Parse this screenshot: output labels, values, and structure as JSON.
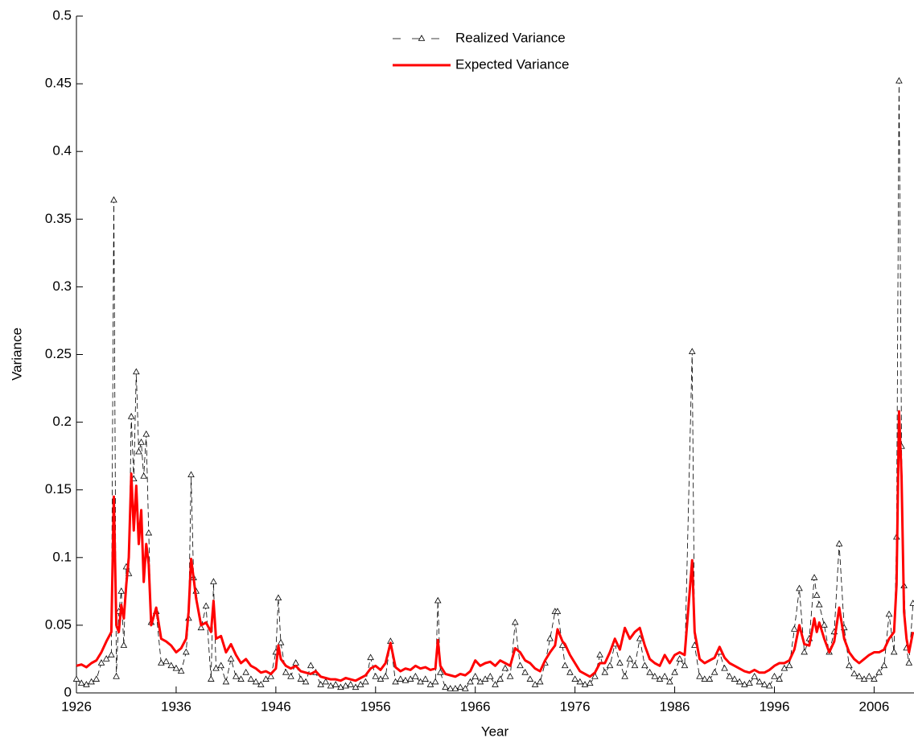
{
  "chart_data": {
    "type": "line",
    "xlabel": "Year",
    "ylabel": "Variance",
    "x": [
      1926.0,
      1926.5,
      1927.0,
      1927.5,
      1928.0,
      1928.5,
      1929.0,
      1929.5,
      1929.75,
      1930.0,
      1930.25,
      1930.5,
      1930.75,
      1931.0,
      1931.25,
      1931.5,
      1931.75,
      1932.0,
      1932.25,
      1932.5,
      1932.75,
      1933.0,
      1933.25,
      1933.5,
      1934.0,
      1934.5,
      1935.0,
      1935.5,
      1936.0,
      1936.5,
      1937.0,
      1937.25,
      1937.5,
      1937.75,
      1938.0,
      1938.5,
      1939.0,
      1939.5,
      1939.75,
      1940.0,
      1940.5,
      1941.0,
      1941.5,
      1942.0,
      1942.5,
      1943.0,
      1943.5,
      1944.0,
      1944.5,
      1945.0,
      1945.5,
      1946.0,
      1946.25,
      1946.5,
      1947.0,
      1947.5,
      1948.0,
      1948.5,
      1949.0,
      1949.5,
      1950.0,
      1950.5,
      1951.0,
      1951.5,
      1952.0,
      1952.5,
      1953.0,
      1953.5,
      1954.0,
      1954.5,
      1955.0,
      1955.5,
      1956.0,
      1956.5,
      1957.0,
      1957.5,
      1958.0,
      1958.5,
      1959.0,
      1959.5,
      1960.0,
      1960.5,
      1961.0,
      1961.5,
      1962.0,
      1962.25,
      1962.5,
      1963.0,
      1963.5,
      1964.0,
      1964.5,
      1965.0,
      1965.5,
      1966.0,
      1966.5,
      1967.0,
      1967.5,
      1968.0,
      1968.5,
      1969.0,
      1969.5,
      1970.0,
      1970.5,
      1971.0,
      1971.5,
      1972.0,
      1972.5,
      1973.0,
      1973.5,
      1974.0,
      1974.25,
      1974.75,
      1975.0,
      1975.5,
      1976.0,
      1976.5,
      1977.0,
      1977.5,
      1978.0,
      1978.5,
      1979.0,
      1979.5,
      1980.0,
      1980.5,
      1981.0,
      1981.5,
      1982.0,
      1982.5,
      1983.0,
      1983.5,
      1984.0,
      1984.5,
      1985.0,
      1985.5,
      1986.0,
      1986.5,
      1987.0,
      1987.75,
      1988.0,
      1988.5,
      1989.0,
      1989.5,
      1990.0,
      1990.5,
      1991.0,
      1991.5,
      1992.0,
      1992.5,
      1993.0,
      1993.5,
      1994.0,
      1994.5,
      1995.0,
      1995.5,
      1996.0,
      1996.5,
      1997.0,
      1997.5,
      1998.0,
      1998.5,
      1999.0,
      1999.5,
      2000.0,
      2000.25,
      2000.5,
      2001.0,
      2001.5,
      2002.0,
      2002.5,
      2003.0,
      2003.5,
      2004.0,
      2004.5,
      2005.0,
      2005.5,
      2006.0,
      2006.5,
      2007.0,
      2007.5,
      2008.0,
      2008.25,
      2008.5,
      2008.75,
      2009.0,
      2009.25,
      2009.5,
      2009.9
    ],
    "series": [
      {
        "name": "Realized Variance",
        "color": "#000000",
        "style": "dashed",
        "marker": "triangle",
        "values": [
          0.01,
          0.007,
          0.006,
          0.008,
          0.01,
          0.022,
          0.025,
          0.028,
          0.364,
          0.012,
          0.06,
          0.075,
          0.035,
          0.093,
          0.088,
          0.204,
          0.158,
          0.237,
          0.178,
          0.185,
          0.16,
          0.191,
          0.118,
          0.052,
          0.06,
          0.022,
          0.023,
          0.02,
          0.018,
          0.016,
          0.03,
          0.055,
          0.161,
          0.085,
          0.075,
          0.048,
          0.064,
          0.01,
          0.082,
          0.018,
          0.02,
          0.008,
          0.025,
          0.012,
          0.01,
          0.015,
          0.01,
          0.008,
          0.006,
          0.01,
          0.012,
          0.03,
          0.07,
          0.037,
          0.015,
          0.012,
          0.022,
          0.01,
          0.008,
          0.02,
          0.015,
          0.006,
          0.008,
          0.005,
          0.006,
          0.004,
          0.005,
          0.006,
          0.004,
          0.006,
          0.008,
          0.026,
          0.012,
          0.01,
          0.012,
          0.038,
          0.008,
          0.01,
          0.009,
          0.01,
          0.012,
          0.008,
          0.01,
          0.006,
          0.008,
          0.068,
          0.015,
          0.004,
          0.003,
          0.003,
          0.004,
          0.003,
          0.008,
          0.012,
          0.008,
          0.01,
          0.012,
          0.006,
          0.01,
          0.018,
          0.012,
          0.052,
          0.02,
          0.015,
          0.01,
          0.006,
          0.008,
          0.022,
          0.04,
          0.06,
          0.06,
          0.035,
          0.02,
          0.015,
          0.01,
          0.008,
          0.006,
          0.007,
          0.012,
          0.028,
          0.015,
          0.02,
          0.036,
          0.022,
          0.012,
          0.025,
          0.02,
          0.04,
          0.02,
          0.015,
          0.012,
          0.01,
          0.012,
          0.008,
          0.015,
          0.025,
          0.02,
          0.252,
          0.035,
          0.012,
          0.01,
          0.01,
          0.015,
          0.03,
          0.018,
          0.012,
          0.01,
          0.008,
          0.006,
          0.007,
          0.012,
          0.008,
          0.006,
          0.005,
          0.012,
          0.01,
          0.018,
          0.02,
          0.047,
          0.077,
          0.03,
          0.04,
          0.085,
          0.072,
          0.065,
          0.05,
          0.03,
          0.045,
          0.11,
          0.048,
          0.02,
          0.014,
          0.012,
          0.01,
          0.012,
          0.01,
          0.015,
          0.02,
          0.058,
          0.03,
          0.115,
          0.452,
          0.182,
          0.079,
          0.033,
          0.022,
          0.066
        ]
      },
      {
        "name": "Expected Variance",
        "color": "#ff0000",
        "style": "solid",
        "marker": "none",
        "values": [
          0.02,
          0.021,
          0.019,
          0.022,
          0.024,
          0.03,
          0.038,
          0.045,
          0.145,
          0.05,
          0.045,
          0.065,
          0.055,
          0.08,
          0.1,
          0.162,
          0.12,
          0.153,
          0.11,
          0.135,
          0.082,
          0.11,
          0.095,
          0.05,
          0.063,
          0.04,
          0.038,
          0.035,
          0.03,
          0.033,
          0.04,
          0.06,
          0.099,
          0.085,
          0.07,
          0.05,
          0.052,
          0.045,
          0.068,
          0.04,
          0.042,
          0.03,
          0.036,
          0.028,
          0.022,
          0.025,
          0.02,
          0.018,
          0.015,
          0.016,
          0.014,
          0.018,
          0.035,
          0.025,
          0.02,
          0.018,
          0.02,
          0.016,
          0.015,
          0.014,
          0.016,
          0.012,
          0.011,
          0.01,
          0.01,
          0.009,
          0.011,
          0.01,
          0.009,
          0.011,
          0.013,
          0.018,
          0.02,
          0.017,
          0.022,
          0.037,
          0.019,
          0.016,
          0.018,
          0.017,
          0.02,
          0.018,
          0.019,
          0.017,
          0.018,
          0.039,
          0.02,
          0.014,
          0.013,
          0.012,
          0.014,
          0.013,
          0.016,
          0.024,
          0.02,
          0.022,
          0.023,
          0.02,
          0.024,
          0.022,
          0.02,
          0.033,
          0.03,
          0.024,
          0.022,
          0.018,
          0.016,
          0.024,
          0.03,
          0.035,
          0.047,
          0.038,
          0.036,
          0.028,
          0.022,
          0.016,
          0.014,
          0.012,
          0.015,
          0.022,
          0.022,
          0.03,
          0.04,
          0.032,
          0.048,
          0.04,
          0.045,
          0.048,
          0.035,
          0.025,
          0.022,
          0.02,
          0.028,
          0.022,
          0.028,
          0.03,
          0.028,
          0.098,
          0.045,
          0.025,
          0.022,
          0.024,
          0.026,
          0.034,
          0.026,
          0.022,
          0.02,
          0.018,
          0.016,
          0.015,
          0.017,
          0.015,
          0.015,
          0.017,
          0.02,
          0.022,
          0.022,
          0.024,
          0.032,
          0.05,
          0.036,
          0.035,
          0.055,
          0.045,
          0.052,
          0.04,
          0.03,
          0.038,
          0.063,
          0.04,
          0.03,
          0.025,
          0.022,
          0.025,
          0.028,
          0.03,
          0.03,
          0.032,
          0.04,
          0.045,
          0.08,
          0.208,
          0.16,
          0.06,
          0.04,
          0.03,
          0.045
        ]
      }
    ],
    "xlim": [
      1926,
      2010
    ],
    "ylim": [
      0,
      0.5
    ],
    "xticks": [
      1926,
      1936,
      1946,
      1956,
      1966,
      1976,
      1986,
      1996,
      2006
    ],
    "yticks": [
      0,
      0.05,
      0.1,
      0.15,
      0.2,
      0.25,
      0.3,
      0.35,
      0.4,
      0.45,
      0.5
    ],
    "legend": "top-center"
  }
}
